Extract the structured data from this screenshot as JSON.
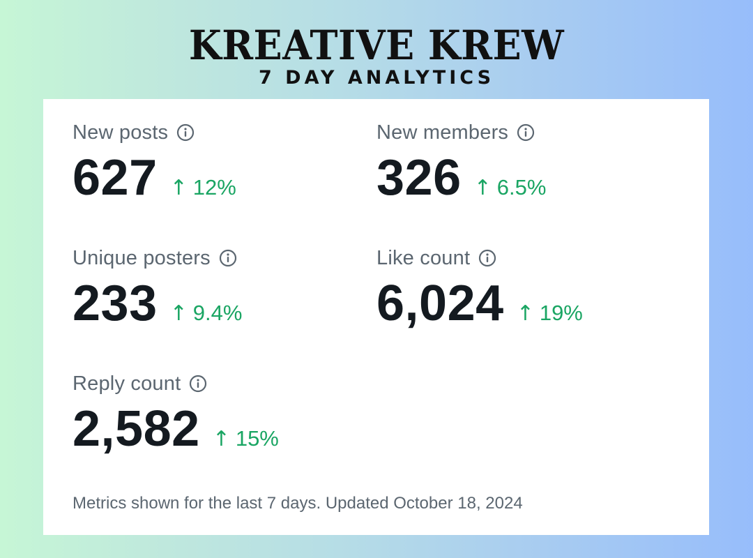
{
  "header": {
    "brand": "KREATIVE KREW",
    "subtitle": "7 DAY ANALYTICS"
  },
  "metrics": [
    {
      "label": "New posts",
      "value": "627",
      "change": "12%",
      "icon": "info-icon"
    },
    {
      "label": "New members",
      "value": "326",
      "change": "6.5%",
      "icon": "info-icon"
    },
    {
      "label": "Unique posters",
      "value": "233",
      "change": "9.4%",
      "icon": "info-icon"
    },
    {
      "label": "Like count",
      "value": "6,024",
      "change": "19%",
      "icon": "info-icon"
    },
    {
      "label": "Reply count",
      "value": "2,582",
      "change": "15%",
      "icon": "info-icon"
    }
  ],
  "trend_arrow": "↑",
  "footer": "Metrics shown for the last 7 days. Updated October 18, 2024",
  "colors": {
    "positive": "#1aa563",
    "label": "#5b6670",
    "value": "#141a20",
    "card": "#ffffff"
  }
}
